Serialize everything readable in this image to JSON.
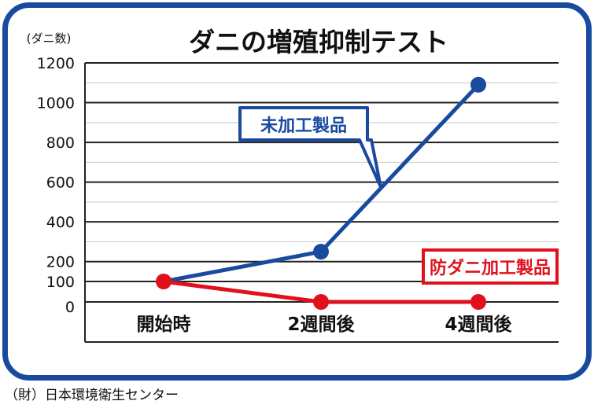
{
  "chart_data": {
    "type": "line",
    "title": "ダニの増殖抑制テスト",
    "ylabel": "(ダニ数)",
    "categories": [
      "開始時",
      "2週間後",
      "4週間後"
    ],
    "y_ticks": [
      0,
      100,
      200,
      400,
      600,
      800,
      1000,
      1200
    ],
    "ylim": [
      0,
      1200
    ],
    "grid": true,
    "series": [
      {
        "name": "未加工製品",
        "values": [
          100,
          250,
          1090
        ],
        "color": "#1a4aa0"
      },
      {
        "name": "防ダニ加工製品",
        "values": [
          100,
          0,
          0
        ],
        "color": "#e0101c"
      }
    ]
  },
  "source_note": "（財）日本環境衛生センター",
  "colors": {
    "frame": "#1a4aa0",
    "untreated": "#1a4aa0",
    "treated": "#e0101c"
  }
}
